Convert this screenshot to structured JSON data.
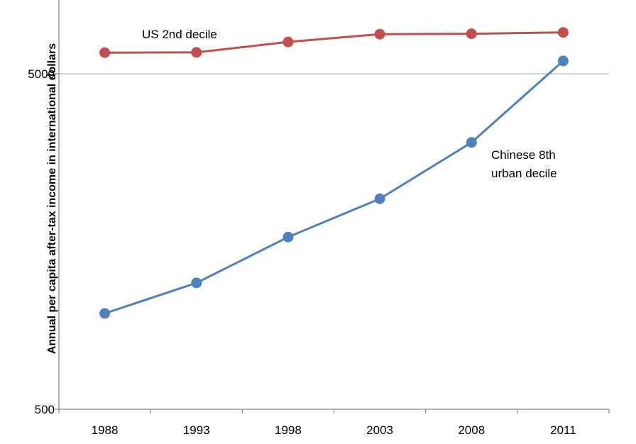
{
  "chart_data": {
    "type": "line",
    "yscale": "log",
    "ylim": [
      500,
      7500
    ],
    "yticks": [
      500,
      5000
    ],
    "ytick_labels": [
      "500",
      "5000"
    ],
    "ylabel": "Annual per capita after-tax income in  international dollars",
    "xlabel": "",
    "categories": [
      "1988",
      "1993",
      "1998",
      "2003",
      "2008",
      "2011"
    ],
    "grid": "horizontal line at 5000",
    "legend": "none (direct labels)",
    "series": [
      {
        "name": "US 2nd decile",
        "color": "#c0504d",
        "values": [
          5780,
          5790,
          6220,
          6560,
          6580,
          6640
        ]
      },
      {
        "name": "Chinese 8th urban decile",
        "color": "#4f81bd",
        "values": [
          965,
          1190,
          1630,
          2120,
          3120,
          5460
        ]
      }
    ],
    "annotations": [
      {
        "text": "US 2nd decile",
        "series": 0
      },
      {
        "text_lines": [
          "Chinese 8th",
          "urban decile"
        ],
        "series": 1
      }
    ]
  }
}
